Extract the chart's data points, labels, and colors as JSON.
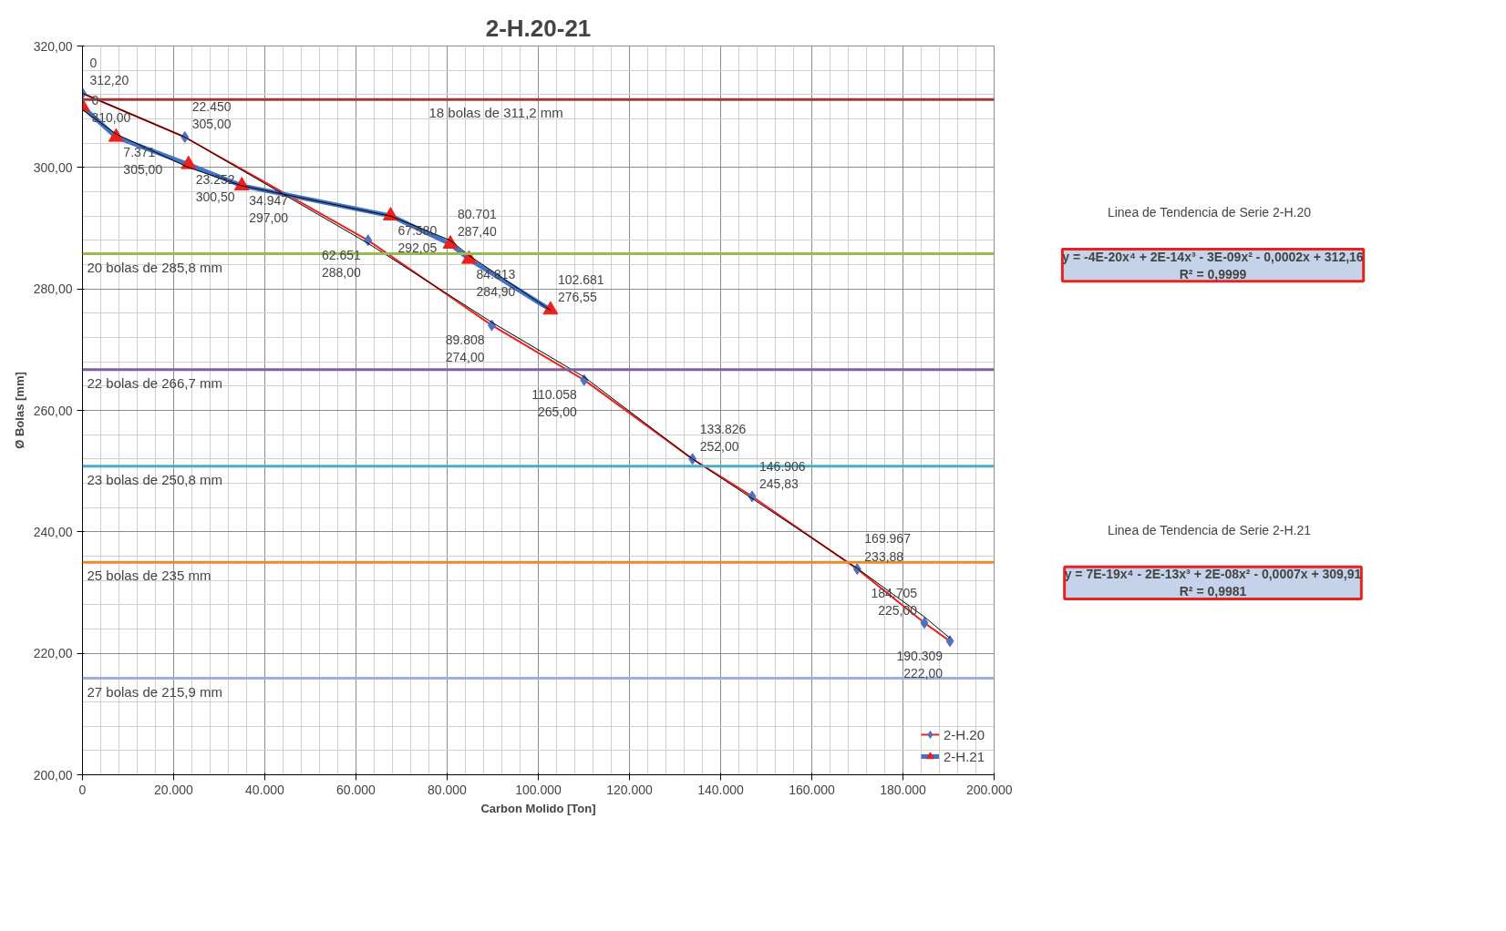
{
  "chart_data": {
    "type": "line",
    "title": "2-H.20-21",
    "xlabel": "Carbon Molido [Ton]",
    "ylabel": "Ø Bolas [mm]",
    "xlim": [
      0,
      200000
    ],
    "ylim": [
      200,
      320
    ],
    "xticks": [
      {
        "value": 0,
        "label": "0"
      },
      {
        "value": 20000,
        "label": "20.000"
      },
      {
        "value": 40000,
        "label": "40.000"
      },
      {
        "value": 60000,
        "label": "60.000"
      },
      {
        "value": 80000,
        "label": "80.000"
      },
      {
        "value": 100000,
        "label": "100.000"
      },
      {
        "value": 120000,
        "label": "120.000"
      },
      {
        "value": 140000,
        "label": "140.000"
      },
      {
        "value": 160000,
        "label": "160.000"
      },
      {
        "value": 180000,
        "label": "180.000"
      },
      {
        "value": 200000,
        "label": "200.000"
      }
    ],
    "yticks": [
      {
        "value": 200,
        "label": "200,00"
      },
      {
        "value": 220,
        "label": "220,00"
      },
      {
        "value": 240,
        "label": "240,00"
      },
      {
        "value": 260,
        "label": "260,00"
      },
      {
        "value": 280,
        "label": "280,00"
      },
      {
        "value": 300,
        "label": "300,00"
      },
      {
        "value": 320,
        "label": "320,00"
      }
    ],
    "grid": true,
    "legend": "bottom right",
    "series": [
      {
        "name": "2-H.20",
        "color": "#e8231f",
        "marker": "diamond",
        "colors": [
          "#4f71be",
          "#4f71be",
          "#4f71be",
          "#4f71be",
          "#4f71be",
          "#4f71be",
          "#4f71be",
          "#4f71be",
          "#4f71be",
          "#4f71be"
        ],
        "x": [
          0,
          22450,
          62651,
          89808,
          110058,
          133826,
          146906,
          169967,
          184705,
          190309
        ],
        "values": [
          312.2,
          305.0,
          288.0,
          274.0,
          265.0,
          252.0,
          245.83,
          233.88,
          225.0,
          222.0
        ],
        "value_labels": [
          "0\n312,20",
          "22.450\n305,00",
          "62.651\n288,00",
          "89.808\n274,00",
          "110.058\n265,00",
          "133.826\n252,00",
          "146.906\n245,83",
          "169.967\n233,88",
          "184.705\n225,00",
          "190.309\n222,00"
        ]
      },
      {
        "name": "2-H.21",
        "color": "#4472c4",
        "marker": "triangle",
        "colors": [
          "#e8231f",
          "#e8231f",
          "#e8231f",
          "#e8231f",
          "#e8231f",
          "#e8231f",
          "#e8231f",
          "#e8231f"
        ],
        "x": [
          0,
          7371,
          23252,
          34947,
          67580,
          80701,
          84813,
          102681
        ],
        "values": [
          310.0,
          305.0,
          300.5,
          297.0,
          292.05,
          287.4,
          284.9,
          276.55
        ],
        "value_labels": [
          "0\n310,00",
          "7.371\n305,00",
          "23.252\n300,50",
          "34.947\n297,00",
          "67.580\n292,05",
          "80.701\n287,40",
          "84.813\n284,90",
          "102.681\n276,55"
        ]
      },
      {
        "color": "#000000",
        "marker": "none",
        "x": [
          0,
          22450,
          62651,
          89808,
          110058,
          133826,
          146906,
          169967,
          184705,
          190309
        ],
        "values": [
          312.2,
          305.0,
          287.5,
          274.5,
          265.5,
          252.0,
          245.5,
          234.0,
          226.0,
          222.5
        ]
      },
      {
        "color": "#000000",
        "marker": "none",
        "x": [
          0,
          7371,
          23252,
          34947,
          67580,
          80701,
          84813,
          102681
        ],
        "values": [
          309.5,
          305.5,
          300.0,
          297.0,
          292.0,
          288.0,
          285.5,
          276.5
        ]
      }
    ],
    "ref_lines": [
      {
        "axis": "y",
        "value": 311.2,
        "label": "18 bolas de 311,2 mm",
        "color": "#9e3a38"
      },
      {
        "axis": "y",
        "value": 285.8,
        "label": "20 bolas de 285,8 mm",
        "color": "#98b954"
      },
      {
        "axis": "y",
        "value": 266.7,
        "label": "22 bolas de 266,7 mm",
        "color": "#7e60a0"
      },
      {
        "axis": "y",
        "value": 250.8,
        "label": "23 bolas de 250,8 mm",
        "color": "#4bacc6"
      },
      {
        "axis": "y",
        "value": 235,
        "label": "25 bolas de 235 mm",
        "color": "#e68c2c"
      },
      {
        "axis": "y",
        "value": 215.9,
        "label": "27 bolas de 215,9 mm",
        "color": "#9bb0de"
      }
    ],
    "annotations": [
      "Linea de Tendencia  de  Serie 2-H.20",
      "y = -4E-20x⁴ + 2E-14x³ - 3E-09x² - 0,0002x + 312,16\nR² = 0,9999",
      "Linea de Tendencia  de  Serie 2-H.21",
      "y = 7E-19x⁴ - 2E-13x³ + 2E-08x² - 0,0007x + 309,91\nR² = 0,9981"
    ]
  }
}
